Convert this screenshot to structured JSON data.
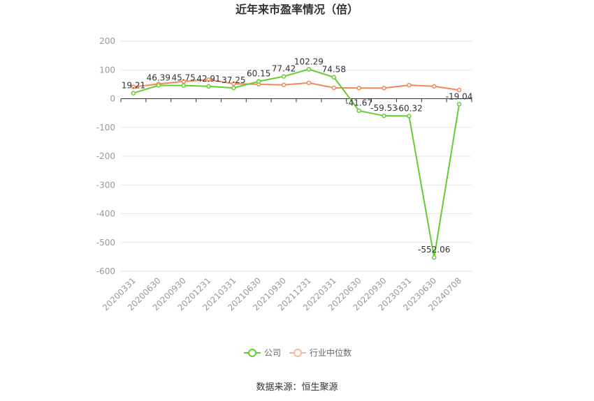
{
  "chart_data": {
    "type": "line",
    "title": "近年来市盈率情况（倍）",
    "categories": [
      "20200331",
      "20200630",
      "20200930",
      "20201231",
      "20210331",
      "20210630",
      "20210930",
      "20211231",
      "20220331",
      "20220630",
      "20220930",
      "20230331",
      "20230630",
      "20240708"
    ],
    "series": [
      {
        "name": "公司",
        "color": "#66cc33",
        "values": [
          19.21,
          46.39,
          45.75,
          42.91,
          37.25,
          60.15,
          77.42,
          102.29,
          74.58,
          -41.67,
          -59.53,
          -60.32,
          -552.06,
          -19.04
        ],
        "labels": [
          "19.21",
          "46.39",
          "45.75",
          "42.91",
          "37.25",
          "60.15",
          "77.42",
          "102.29",
          "74.58",
          "-41.67",
          "-59.53",
          "-60.32",
          "-552.06",
          "-19.04"
        ]
      },
      {
        "name": "行业中位数",
        "color": "#f0895a",
        "values": [
          41,
          51,
          60,
          66,
          52,
          50,
          48,
          55,
          38,
          37,
          37,
          47,
          43,
          30
        ]
      }
    ],
    "yticks": [
      "200",
      "100",
      "0",
      "-100",
      "-200",
      "-300",
      "-400",
      "-500",
      "-600"
    ],
    "ylim": [
      -600,
      200
    ],
    "legend_position": "bottom-center",
    "grid": true
  },
  "source": "数据来源：恒生聚源"
}
